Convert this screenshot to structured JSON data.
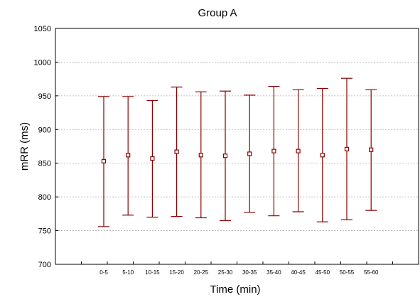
{
  "chart_data": {
    "type": "errorbar",
    "title": "Group A",
    "xlabel": "Time (min)",
    "ylabel": "mRR (ms)",
    "ylim": [
      700,
      1050
    ],
    "yticks": [
      700,
      750,
      800,
      850,
      900,
      950,
      1000,
      1050
    ],
    "grid": true,
    "colors": {
      "series": "#8b0000",
      "grid": "#b0b0b0",
      "axis": "#000000"
    },
    "categories": [
      "0-5",
      "5-10",
      "10-15",
      "15-20",
      "20-25",
      "25-30",
      "30-35",
      "35-40",
      "40-45",
      "45-50",
      "50-55",
      "55-60"
    ],
    "series": [
      {
        "mean": [
          853,
          862,
          857,
          867,
          862,
          861,
          864,
          868,
          868,
          862,
          871,
          870
        ],
        "upper": [
          949,
          949,
          943,
          963,
          956,
          957,
          951,
          964,
          959,
          961,
          976,
          959
        ],
        "lower": [
          756,
          773,
          770,
          771,
          769,
          765,
          777,
          772,
          778,
          763,
          766,
          780
        ]
      }
    ]
  }
}
